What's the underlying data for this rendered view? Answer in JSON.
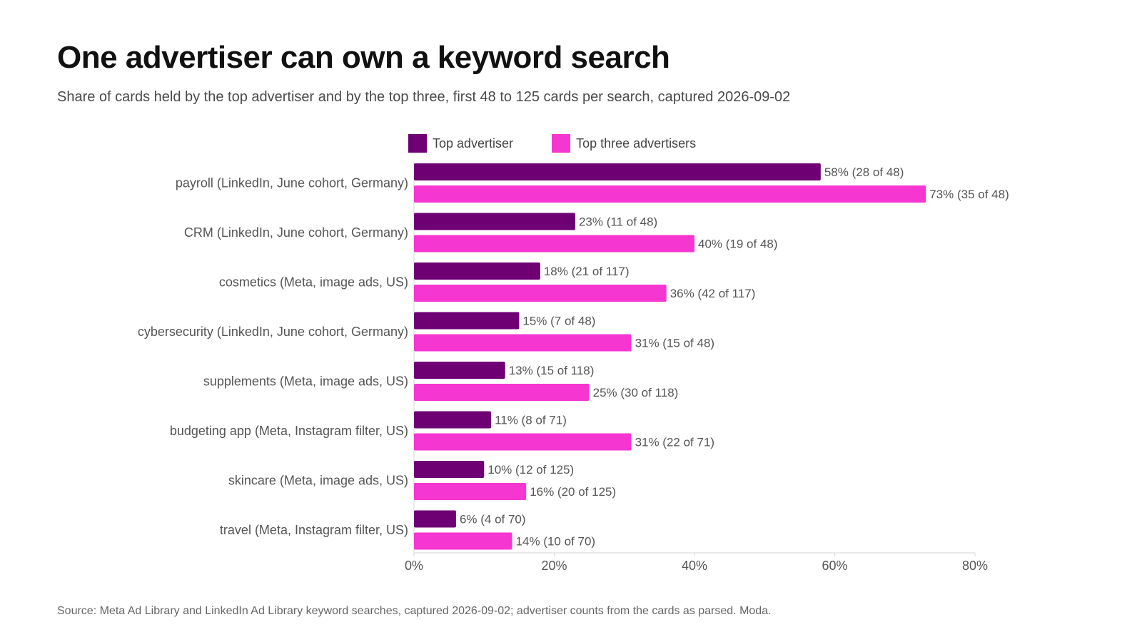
{
  "chart_data": {
    "type": "bar",
    "orientation": "horizontal",
    "title": "One advertiser can own a keyword search",
    "subtitle": "Share of cards held by the top advertiser and by the top three, first 48 to 125 cards per search, captured 2026-09-02",
    "source": "Source: Meta Ad Library and LinkedIn Ad Library keyword searches, captured 2026-09-02; advertiser counts from the cards as parsed. Moda.",
    "categories": [
      "payroll (LinkedIn, June cohort, Germany)",
      "CRM (LinkedIn, June cohort, Germany)",
      "cosmetics (Meta, image ads, US)",
      "cybersecurity (LinkedIn, June cohort, Germany)",
      "supplements (Meta, image ads, US)",
      "budgeting app (Meta, Instagram filter, US)",
      "skincare (Meta, image ads, US)",
      "travel (Meta, Instagram filter, US)"
    ],
    "series": [
      {
        "name": "Top advertiser",
        "color": "#6e0074",
        "values": [
          58,
          23,
          18,
          15,
          13,
          11,
          10,
          6
        ],
        "labels": [
          "58% (28 of 48)",
          "23% (11 of 48)",
          "18% (21 of 117)",
          "15% (7 of 48)",
          "13% (15 of 118)",
          "11% (8 of 71)",
          "10% (12 of 125)",
          "6% (4 of 70)"
        ]
      },
      {
        "name": "Top three advertisers",
        "color": "#f536d0",
        "values": [
          73,
          40,
          36,
          31,
          25,
          31,
          16,
          14
        ],
        "labels": [
          "73% (35 of 48)",
          "40% (19 of 48)",
          "36% (42 of 117)",
          "31% (15 of 48)",
          "25% (30 of 118)",
          "31% (22 of 71)",
          "16% (20 of 125)",
          "14% (10 of 70)"
        ]
      }
    ],
    "xlim": [
      0,
      80
    ],
    "xticks": [
      0,
      20,
      40,
      60,
      80
    ],
    "xtick_labels": [
      "0%",
      "20%",
      "40%",
      "60%",
      "80%"
    ],
    "grid": false,
    "legend_position": "top"
  }
}
